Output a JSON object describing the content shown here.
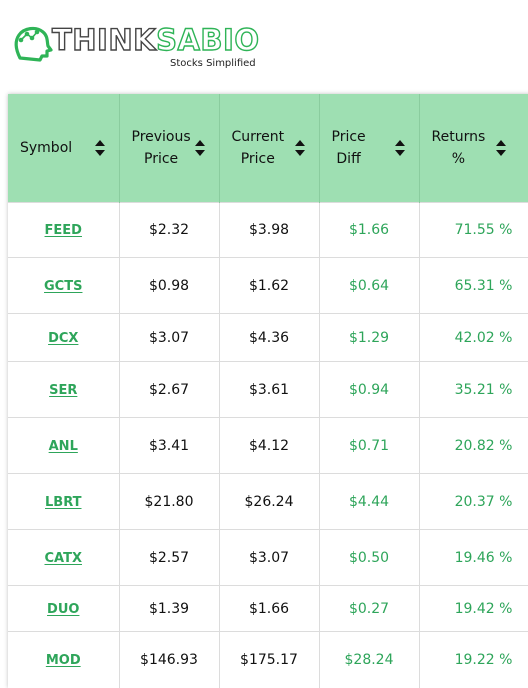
{
  "brand": {
    "name_part1": "THINK",
    "name_part2": "SABIO",
    "tagline": "Stocks Simplified"
  },
  "colors": {
    "accent": "#2ea55a",
    "header_bg": "#9edfb2"
  },
  "table": {
    "headers": [
      {
        "line1": "Symbol",
        "line2": ""
      },
      {
        "line1": "Previous",
        "line2": "Price"
      },
      {
        "line1": "Current",
        "line2": "Price"
      },
      {
        "line1": "Price",
        "line2": "Diff"
      },
      {
        "line1": "Returns",
        "line2": "%"
      }
    ],
    "rows": [
      {
        "symbol": "FEED",
        "previous": "$2.32",
        "current": "$3.98",
        "diff": "$1.66",
        "returns": "71.55 %"
      },
      {
        "symbol": "GCTS",
        "previous": "$0.98",
        "current": "$1.62",
        "diff": "$0.64",
        "returns": "65.31 %"
      },
      {
        "symbol": "DCX",
        "previous": "$3.07",
        "current": "$4.36",
        "diff": "$1.29",
        "returns": "42.02 %"
      },
      {
        "symbol": "SER",
        "previous": "$2.67",
        "current": "$3.61",
        "diff": "$0.94",
        "returns": "35.21 %"
      },
      {
        "symbol": "ANL",
        "previous": "$3.41",
        "current": "$4.12",
        "diff": "$0.71",
        "returns": "20.82 %"
      },
      {
        "symbol": "LBRT",
        "previous": "$21.80",
        "current": "$26.24",
        "diff": "$4.44",
        "returns": "20.37 %"
      },
      {
        "symbol": "CATX",
        "previous": "$2.57",
        "current": "$3.07",
        "diff": "$0.50",
        "returns": "19.46 %"
      },
      {
        "symbol": "DUO",
        "previous": "$1.39",
        "current": "$1.66",
        "diff": "$0.27",
        "returns": "19.42 %"
      },
      {
        "symbol": "MOD",
        "previous": "$146.93",
        "current": "$175.17",
        "diff": "$28.24",
        "returns": "19.22 %"
      }
    ]
  }
}
